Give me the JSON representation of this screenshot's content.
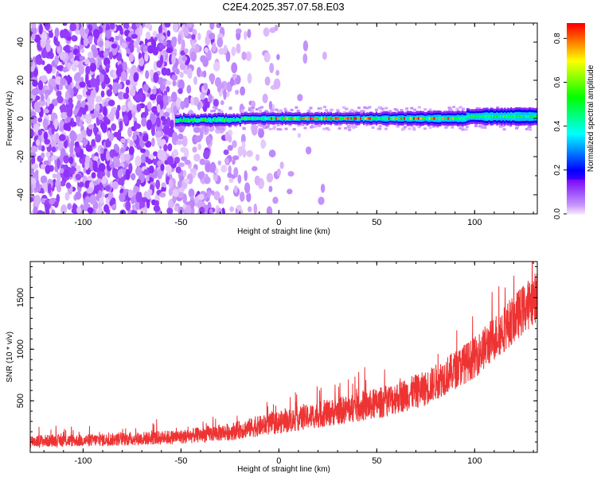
{
  "figure": {
    "title": "C2E4.2025.357.07.58.E03"
  },
  "chart_data": [
    {
      "type": "heatmap",
      "xlabel": "Height of straight line (km)",
      "ylabel": "Frequency (Hz)",
      "xlim": [
        -127,
        132
      ],
      "ylim": [
        -50,
        50
      ],
      "x_ticks": [
        -100,
        -50,
        0,
        50,
        100
      ],
      "y_ticks": [
        -40,
        -20,
        0,
        20,
        40
      ],
      "colormap": "rainbow",
      "colorbar": {
        "label": "Normalized spectral amplitude",
        "range": [
          0,
          0.87
        ],
        "ticks": [
          "0.0",
          "0.2",
          "0.4",
          "0.6",
          "0.8"
        ]
      },
      "features": [
        {
          "name": "noise",
          "x_range": [
            -127,
            5
          ],
          "frequency_range": [
            -50,
            50
          ],
          "amplitude": 0.05
        },
        {
          "name": "signal_band",
          "x_range": [
            -53,
            132
          ],
          "frequency_center": 0,
          "frequency_halfwidth": [
            1.5,
            3
          ],
          "amplitude_range": [
            0.15,
            0.87
          ]
        }
      ]
    },
    {
      "type": "line",
      "xlabel": "Height of straight line (km)",
      "ylabel": "SNR (10 * v/v)",
      "xlim": [
        -127,
        132
      ],
      "ylim": [
        0,
        1850
      ],
      "x_ticks": [
        -100,
        -50,
        0,
        50,
        100
      ],
      "y_ticks": [
        500,
        1000,
        1500
      ],
      "color": "#ee3333",
      "series": [
        {
          "x": [
            -127,
            -100,
            -75,
            -50,
            -25,
            0,
            25,
            50,
            75,
            100,
            115,
            132
          ],
          "y": [
            110,
            115,
            130,
            150,
            200,
            290,
            380,
            470,
            620,
            920,
            1200,
            1520
          ],
          "noise_half_range": [
            60,
            60,
            65,
            70,
            85,
            110,
            130,
            150,
            170,
            200,
            230,
            250
          ]
        }
      ]
    }
  ]
}
